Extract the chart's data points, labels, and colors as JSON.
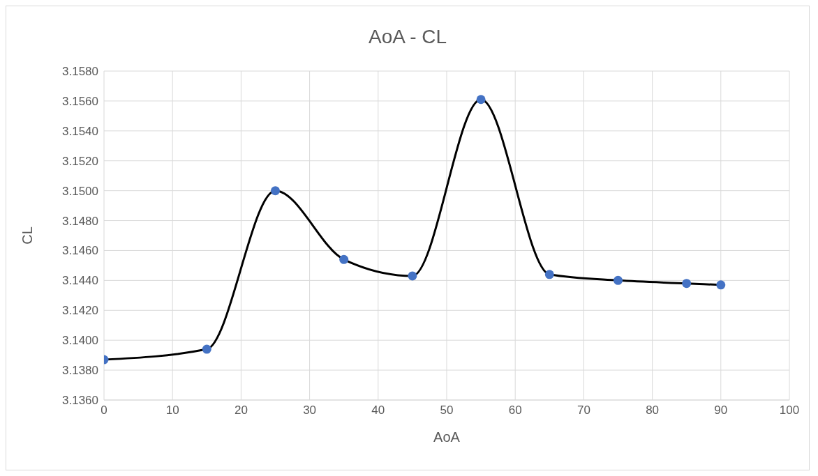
{
  "chart_data": {
    "type": "line",
    "title": "AoA - CL",
    "xlabel": "AoA",
    "ylabel": "CL",
    "x": [
      0,
      15,
      25,
      35,
      45,
      55,
      65,
      75,
      85,
      90
    ],
    "series": [
      {
        "color": "#000000",
        "colors": [
          "#4472c4",
          "#4472c4",
          "#4472c4",
          "#4472c4",
          "#4472c4",
          "#4472c4",
          "#4472c4",
          "#4472c4",
          "#4472c4",
          "#4472c4"
        ],
        "values": [
          3.1387,
          3.1394,
          3.15,
          3.1454,
          3.1443,
          3.1561,
          3.1444,
          3.144,
          3.1438,
          3.1437
        ]
      }
    ],
    "marker": "circle",
    "xlim": [
      0,
      100
    ],
    "xticks": [
      0,
      10,
      20,
      30,
      40,
      50,
      60,
      70,
      80,
      90,
      100
    ],
    "ylim": [
      3.136,
      3.158
    ],
    "yticks": [
      {
        "value": 3.136,
        "label": "3.1360"
      },
      {
        "value": 3.138,
        "label": "3.1380"
      },
      {
        "value": 3.14,
        "label": "3.1400"
      },
      {
        "value": 3.142,
        "label": "3.1420"
      },
      {
        "value": 3.144,
        "label": "3.1440"
      },
      {
        "value": 3.146,
        "label": "3.1460"
      },
      {
        "value": 3.148,
        "label": "3.1480"
      },
      {
        "value": 3.15,
        "label": "3.1500"
      },
      {
        "value": 3.152,
        "label": "3.1520"
      },
      {
        "value": 3.154,
        "label": "3.1540"
      },
      {
        "value": 3.156,
        "label": "3.1560"
      },
      {
        "value": 3.158,
        "label": "3.1580"
      }
    ],
    "grid": true,
    "line_style": "solid"
  }
}
